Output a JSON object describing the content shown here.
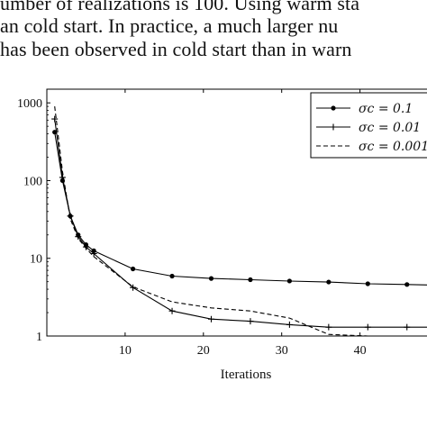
{
  "paragraph": {
    "line1": "umber of realizations is 100. Using warm sta",
    "line2": "an cold start. In practice, a much larger nu",
    "line3": "has been observed in cold start than in warn"
  },
  "chart_data": {
    "type": "line",
    "xlabel": "Iterations",
    "ylabel": "",
    "xlim": [
      0,
      50
    ],
    "ylim": [
      1,
      1500
    ],
    "yscale": "log",
    "x_ticks": [
      10,
      20,
      30,
      40
    ],
    "y_ticks": [
      1,
      10,
      100,
      1000
    ],
    "y_tick_labels": [
      "1",
      "10",
      "100",
      "1000"
    ],
    "legend_position": "top-right",
    "series": [
      {
        "name": "σc = 0.1",
        "style": "solid-dot",
        "x": [
          1,
          2,
          3,
          4,
          5,
          6,
          11,
          16,
          21,
          26,
          31,
          36,
          41,
          46,
          50
        ],
        "y": [
          420,
          100,
          35,
          20,
          15,
          12.5,
          7.3,
          5.9,
          5.5,
          5.3,
          5.1,
          4.95,
          4.7,
          4.6,
          4.5
        ]
      },
      {
        "name": "σc = 0.01",
        "style": "solid-plus",
        "x": [
          1,
          2,
          3,
          4,
          5,
          6,
          11,
          16,
          21,
          26,
          31,
          36,
          41,
          46,
          50
        ],
        "y": [
          620,
          110,
          35,
          19,
          14,
          11.5,
          4.2,
          2.1,
          1.65,
          1.55,
          1.4,
          1.3,
          1.3,
          1.3,
          1.3
        ]
      },
      {
        "name": "σc = 0.001",
        "style": "dashed",
        "x": [
          1,
          2,
          3,
          4,
          5,
          6,
          11,
          16,
          21,
          26,
          31,
          36,
          41,
          46,
          50
        ],
        "y": [
          900,
          130,
          32,
          18,
          13.5,
          10.5,
          4.3,
          2.75,
          2.3,
          2.1,
          1.7,
          1.05,
          1.0,
          1.0,
          1.0
        ]
      }
    ],
    "colors": {
      "line": "#000000",
      "axis": "#000000",
      "background": "#ffffff"
    }
  }
}
